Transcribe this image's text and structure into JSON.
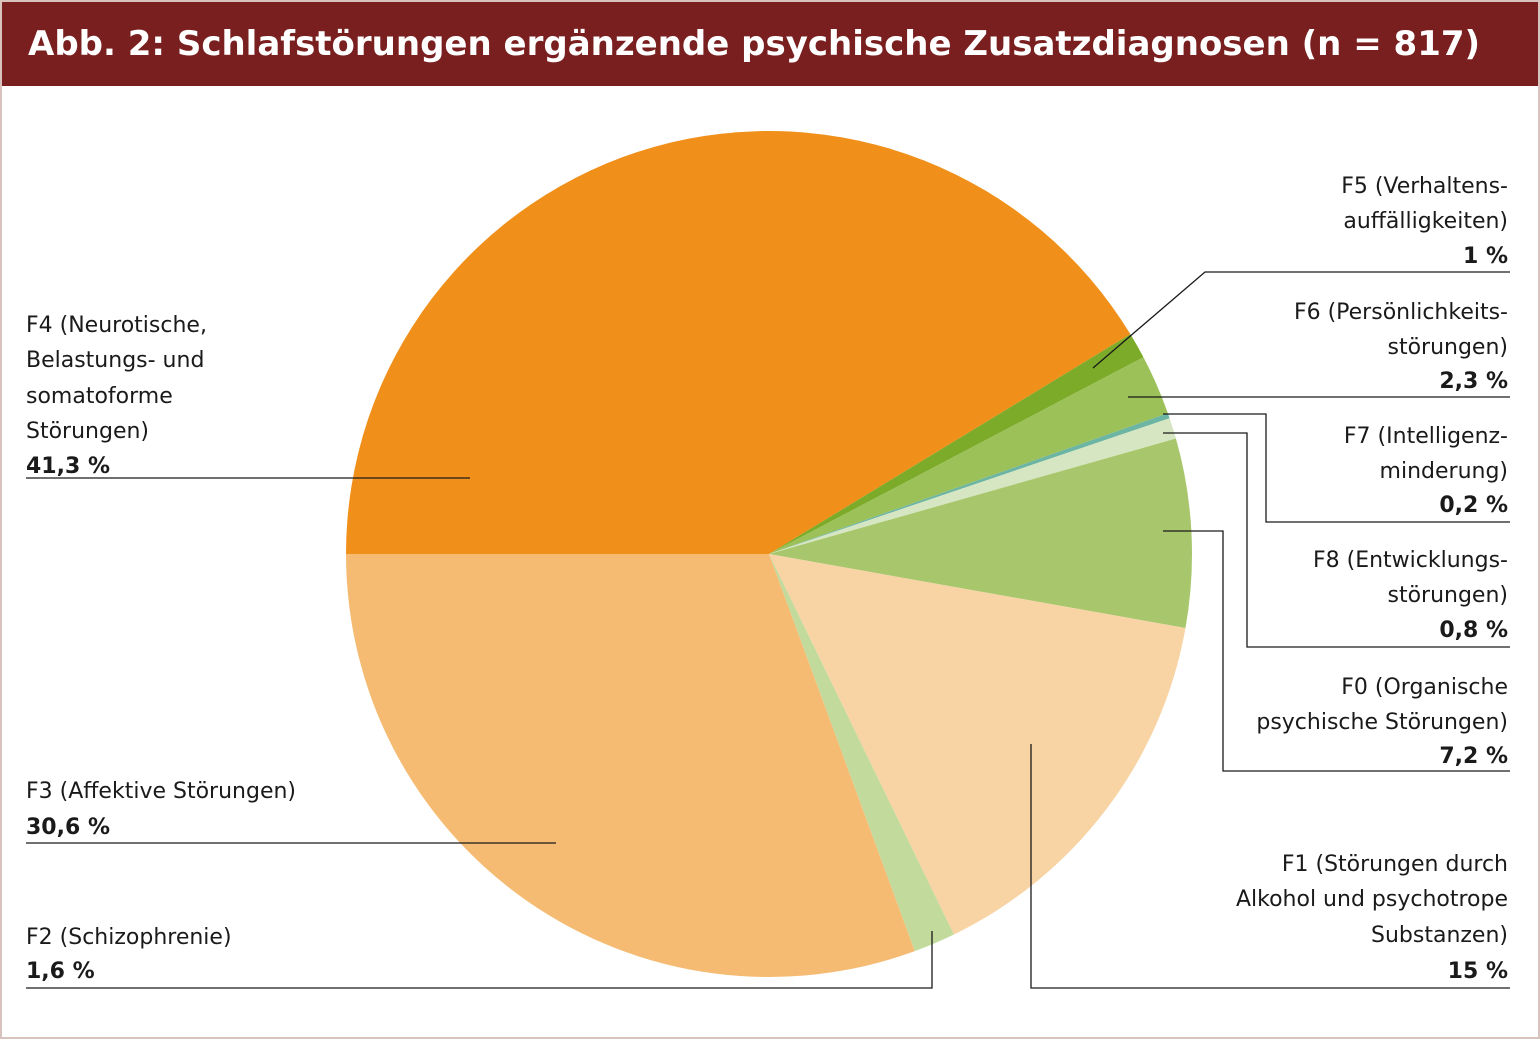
{
  "title": "Abb. 2: Schlafstörungen ergänzende psychische Zusatzdiagnosen (n = 817)",
  "chart_data": {
    "type": "pie",
    "title": "Abb. 2: Schlafstörungen ergänzende psychische Zusatzdiagnosen (n = 817)",
    "n": 817,
    "slices": [
      {
        "key": "F4",
        "label_lines": [
          "F4 (Neurotische,",
          "Belastungs- und",
          "somatoforme",
          "Störungen)"
        ],
        "value_label": "41,3 %",
        "value": 41.3,
        "color": "#f0901a"
      },
      {
        "key": "F5",
        "label_lines": [
          "F5 (Verhaltens-",
          "auffälligkeiten)"
        ],
        "value_label": "1 %",
        "value": 1.0,
        "color": "#7bab28"
      },
      {
        "key": "F6",
        "label_lines": [
          "F6 (Persönlichkeits-",
          "störungen)"
        ],
        "value_label": "2,3 %",
        "value": 2.3,
        "color": "#9cc159"
      },
      {
        "key": "F7",
        "label_lines": [
          "F7 (Intelligenz-",
          "minderung)"
        ],
        "value_label": "0,2 %",
        "value": 0.2,
        "color": "#6bb5a2"
      },
      {
        "key": "F8",
        "label_lines": [
          "F8 (Entwicklungs-",
          "störungen)"
        ],
        "value_label": "0,8 %",
        "value": 0.8,
        "color": "#d6e6c2"
      },
      {
        "key": "F0",
        "label_lines": [
          "F0 (Organische",
          "psychische Störungen)"
        ],
        "value_label": "7,2 %",
        "value": 7.2,
        "color": "#a8c76d"
      },
      {
        "key": "F1",
        "label_lines": [
          "F1 (Störungen durch",
          "Alkohol und psychotrope",
          "Substanzen)"
        ],
        "value_label": "15 %",
        "value": 15.0,
        "color": "#f8d3a4"
      },
      {
        "key": "F2",
        "label_lines": [
          "F2 (Schizophrenie)"
        ],
        "value_label": "1,6 %",
        "value": 1.6,
        "color": "#c3da9d"
      },
      {
        "key": "F3",
        "label_lines": [
          "F3 (Affektive Störungen)"
        ],
        "value_label": "30,6 %",
        "value": 30.6,
        "color": "#f5bb73"
      }
    ]
  }
}
